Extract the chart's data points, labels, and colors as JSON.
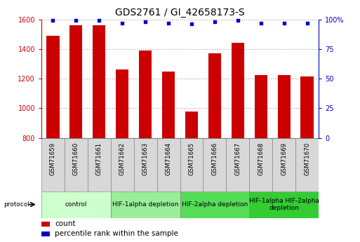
{
  "title": "GDS2761 / GI_42658173-S",
  "samples": [
    "GSM71659",
    "GSM71660",
    "GSM71661",
    "GSM71662",
    "GSM71663",
    "GSM71664",
    "GSM71665",
    "GSM71666",
    "GSM71667",
    "GSM71668",
    "GSM71669",
    "GSM71670"
  ],
  "counts": [
    1490,
    1560,
    1560,
    1260,
    1390,
    1250,
    980,
    1370,
    1440,
    1225,
    1225,
    1215
  ],
  "percentiles": [
    99,
    99,
    99,
    97,
    98,
    97,
    96,
    98,
    99,
    97,
    97,
    97
  ],
  "ylim_left": [
    800,
    1600
  ],
  "ylim_right": [
    0,
    100
  ],
  "yticks_left": [
    800,
    1000,
    1200,
    1400,
    1600
  ],
  "yticks_right": [
    0,
    25,
    50,
    75,
    100
  ],
  "bar_color": "#cc0000",
  "dot_color": "#0000cc",
  "bar_width": 0.55,
  "groups": [
    {
      "label": "control",
      "start": 0,
      "end": 3,
      "color": "#ccffcc"
    },
    {
      "label": "HIF-1alpha depletion",
      "start": 3,
      "end": 6,
      "color": "#99ee99"
    },
    {
      "label": "HIF-2alpha depletion",
      "start": 6,
      "end": 9,
      "color": "#55dd55"
    },
    {
      "label": "HIF-1alpha HIF-2alpha\ndepletion",
      "start": 9,
      "end": 12,
      "color": "#33cc33"
    }
  ],
  "protocol_label": "protocol",
  "legend_count_label": "count",
  "legend_pct_label": "percentile rank within the sample",
  "bg_color": "#ffffff",
  "sample_box_color": "#d8d8d8",
  "sample_box_edge": "#888888"
}
